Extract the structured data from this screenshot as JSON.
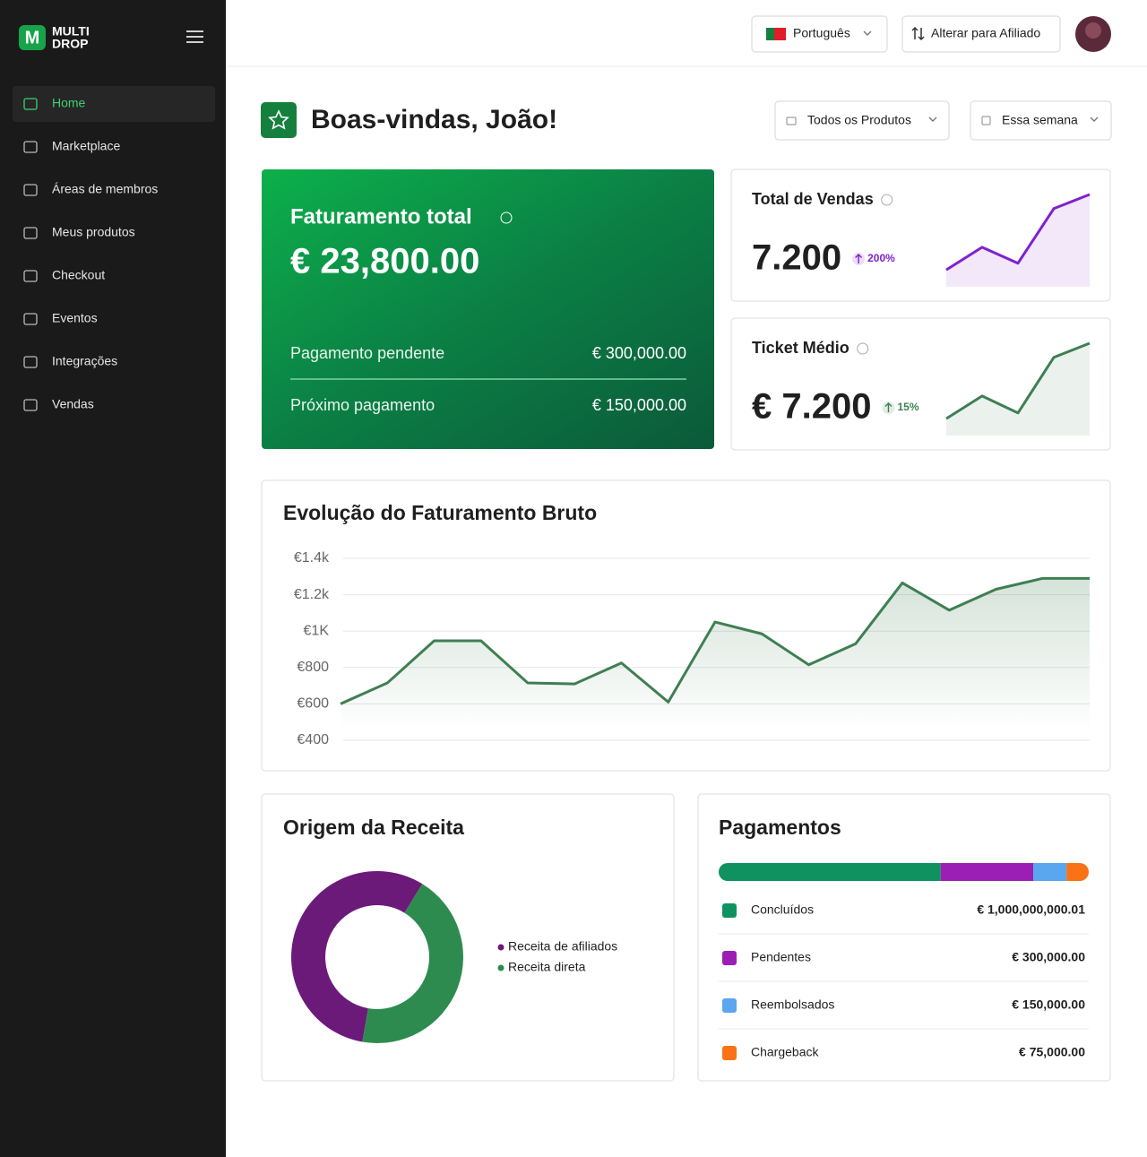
{
  "sidebar": {
    "logo": {
      "mark": "M",
      "line1": "MULTI",
      "line2": "DROP"
    },
    "nav": [
      {
        "label": "Home",
        "active": true
      },
      {
        "label": "Marketplace",
        "active": false
      },
      {
        "label": "Áreas de membros",
        "active": false
      },
      {
        "label": "Meus produtos",
        "active": false
      },
      {
        "label": "Checkout",
        "active": false
      },
      {
        "label": "Eventos",
        "active": false
      },
      {
        "label": "Integrações",
        "active": false
      },
      {
        "label": "Vendas",
        "active": false
      }
    ]
  },
  "topbar": {
    "language": "Português",
    "switch": "Alterar para Afiliado"
  },
  "header": {
    "title": "Boas-vindas, João!",
    "filters": [
      "Todos os Produtos",
      "Essa semana"
    ]
  },
  "revenue_card": {
    "title": "Faturamento total",
    "amount": "€ 23,800.00",
    "rows": [
      {
        "label": "Pagamento pendente",
        "value": "€ 300,000.00"
      },
      {
        "label": "Próximo pagamento",
        "value": "€ 150,000.00"
      }
    ]
  },
  "kpis": [
    {
      "title": "Total de Vendas",
      "value": "7.200",
      "change": "200%",
      "color": "#7e22ce",
      "spark": [
        18,
        42,
        25,
        83,
        98
      ]
    },
    {
      "title": "Ticket Médio",
      "value": "€ 7.200",
      "change": "15%",
      "color": "#3f7f52",
      "spark": [
        18,
        42,
        24,
        83,
        98
      ]
    }
  ],
  "chart_data": [
    {
      "type": "line",
      "title": "Evolução do Faturamento Bruto",
      "categories": [
        null,
        null,
        null,
        null,
        null,
        null,
        null,
        null,
        null,
        null,
        null,
        null,
        null,
        null,
        null,
        null,
        null
      ],
      "values": [
        600,
        715,
        947,
        947,
        715,
        710,
        825,
        610,
        1050,
        985,
        815,
        930,
        1265,
        1115,
        1230,
        1290,
        1290
      ],
      "color": "#3f7f52",
      "ylim": [
        400,
        1400
      ],
      "yticks": [
        {
          "value": 1400,
          "label": "€1.4k"
        },
        {
          "value": 1200,
          "label": "€1.2k"
        },
        {
          "value": 1000,
          "label": "€1K"
        },
        {
          "value": 800,
          "label": "€800"
        },
        {
          "value": 600,
          "label": "€600"
        },
        {
          "value": 400,
          "label": "€400"
        }
      ],
      "grid": true
    },
    {
      "type": "pie",
      "title": "Origem da Receita",
      "categories": [
        "Receita de afiliados",
        "Receita direta"
      ],
      "values": [
        56,
        44
      ],
      "colors": [
        "#6b1a7a",
        "#2e8b4f"
      ],
      "donut": true
    }
  ],
  "payments": {
    "title": "Pagamentos",
    "items": [
      {
        "label": "Concluídos",
        "amount": "€ 1,000,000,000.01",
        "color": "#0f9260",
        "share": 60
      },
      {
        "label": "Pendentes",
        "amount": "€ 300,000.00",
        "color": "#9b1fb5",
        "share": 25
      },
      {
        "label": "Reembolsados",
        "amount": "€ 150,000.00",
        "color": "#5aa6ef",
        "share": 9
      },
      {
        "label": "Chargeback",
        "amount": "€ 75,000.00",
        "color": "#f97316",
        "share": 6
      }
    ]
  }
}
